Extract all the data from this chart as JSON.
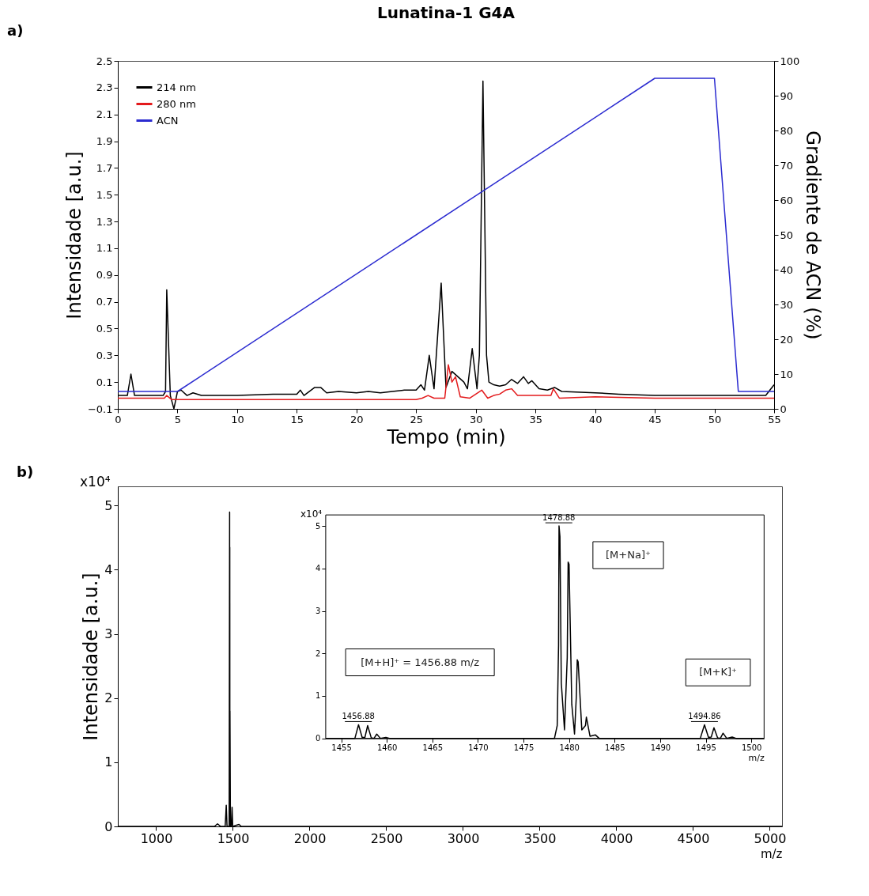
{
  "chart_data": [
    {
      "type": "line",
      "title": "Lunatina-1 G4A",
      "xlabel": "Tempo (min)",
      "ylabel": "Intensidade [a.u.]",
      "y2label": "Gradiente de ACN (%)",
      "annotations": [
        "a)"
      ],
      "xlim": [
        0,
        55
      ],
      "xticks": [
        0,
        5,
        10,
        15,
        20,
        25,
        30,
        35,
        40,
        45,
        50,
        55
      ],
      "ylim": [
        -0.1,
        2.5
      ],
      "yticks": [
        -0.1,
        0.1,
        0.3,
        0.5,
        0.7,
        0.9,
        1.1,
        1.3,
        1.5,
        1.7,
        1.9,
        2.1,
        2.3,
        2.5
      ],
      "y2lim": [
        0,
        100
      ],
      "y2ticks": [
        0,
        10,
        20,
        30,
        40,
        50,
        60,
        70,
        80,
        90,
        100
      ],
      "legend": "top left",
      "grid": false,
      "marker": "none",
      "line_style": "solid",
      "series": [
        {
          "name": "214 nm",
          "color": "#000000",
          "x": [
            0,
            0.8,
            1.1,
            1.4,
            3.8,
            4.0,
            4.1,
            4.4,
            4.7,
            5.0,
            5.3,
            5.8,
            6.3,
            7.0,
            10,
            13,
            15,
            15.3,
            15.6,
            16.5,
            17,
            17.5,
            18.5,
            20,
            21,
            22,
            23,
            24,
            25,
            25.4,
            25.7,
            26.1,
            26.5,
            27.1,
            27.5,
            28.0,
            28.5,
            29.0,
            29.3,
            29.7,
            30.1,
            30.3,
            30.6,
            30.9,
            31.1,
            31.5,
            32.0,
            32.5,
            33.0,
            33.5,
            34.0,
            34.4,
            34.7,
            35.3,
            36,
            36.6,
            37.2,
            40,
            42,
            45,
            50,
            54.3,
            55
          ],
          "values": [
            0.0,
            0.0,
            0.16,
            0.0,
            0.0,
            0.03,
            0.79,
            0.0,
            -0.1,
            0.03,
            0.04,
            0.0,
            0.02,
            0.0,
            0.0,
            0.01,
            0.01,
            0.04,
            0.0,
            0.06,
            0.06,
            0.02,
            0.03,
            0.02,
            0.03,
            0.02,
            0.03,
            0.04,
            0.04,
            0.08,
            0.04,
            0.3,
            0.05,
            0.84,
            0.06,
            0.18,
            0.14,
            0.1,
            0.05,
            0.35,
            0.05,
            0.3,
            2.35,
            0.3,
            0.1,
            0.08,
            0.07,
            0.08,
            0.12,
            0.09,
            0.14,
            0.09,
            0.11,
            0.05,
            0.04,
            0.06,
            0.03,
            0.02,
            0.01,
            0.0,
            0.0,
            0.0,
            0.08
          ]
        },
        {
          "name": "280 nm",
          "color": "#e31a1c",
          "x": [
            0,
            3.9,
            4.1,
            4.5,
            25,
            25.5,
            26,
            26.5,
            27.4,
            27.7,
            28,
            28.3,
            28.7,
            29.5,
            30.5,
            31,
            31.5,
            32,
            32.5,
            33,
            33.5,
            36.3,
            36.5,
            37,
            40,
            45,
            55
          ],
          "values": [
            -0.02,
            -0.02,
            0.0,
            -0.03,
            -0.03,
            -0.02,
            0.0,
            -0.02,
            -0.02,
            0.23,
            0.1,
            0.14,
            -0.01,
            -0.02,
            0.04,
            -0.02,
            0.0,
            0.01,
            0.04,
            0.05,
            0.0,
            0.0,
            0.05,
            -0.02,
            -0.01,
            -0.02,
            -0.02
          ]
        },
        {
          "name": "ACN",
          "color": "#2b2bd0",
          "axis": "y2",
          "x": [
            0,
            5,
            45,
            50,
            52,
            55
          ],
          "values": [
            5,
            5,
            95,
            95,
            5,
            5
          ]
        }
      ]
    },
    {
      "type": "line",
      "xlabel": "m/z",
      "ylabel": "Intensidade [a.u.]",
      "annotations": [
        "b)",
        "x10⁴"
      ],
      "xlim": [
        750,
        5080
      ],
      "xticks": [
        1000,
        1500,
        2000,
        2500,
        3000,
        3500,
        4000,
        4500,
        5000
      ],
      "ylim": [
        0,
        5.3
      ],
      "yticks": [
        0,
        1,
        2,
        3,
        4,
        5
      ],
      "grid": false,
      "marker": "none",
      "line_style": "solid",
      "series": [
        {
          "color": "#000000",
          "x": [
            750,
            1380,
            1400,
            1420,
            1450,
            1456.9,
            1462,
            1476,
            1478.9,
            1479.4,
            1479.9,
            1480.5,
            1481,
            1484,
            1490,
            1494.9,
            1499,
            1540,
            1555,
            1570,
            5080
          ],
          "values": [
            0,
            0,
            0.04,
            0,
            0,
            0.33,
            0,
            0,
            4.9,
            0.3,
            4.35,
            0.2,
            1.8,
            0,
            0,
            0.3,
            0,
            0.03,
            0,
            0,
            0
          ]
        }
      ]
    },
    {
      "type": "line",
      "xlabel": "m/z",
      "annotations": [
        "x10⁴",
        {
          "text": "1478.88",
          "x": 1478.88,
          "y": 5.0
        },
        {
          "text": "1456.88",
          "x": 1456.88,
          "y": 0.32
        },
        {
          "text": "1494.86",
          "x": 1494.86,
          "y": 0.32
        },
        "[M+Na]⁺",
        "[M+H]⁺ = 1456.88 m/z",
        "[M+K]⁺"
      ],
      "xlim": [
        1453.3,
        1501.4
      ],
      "xticks": [
        1455,
        1460,
        1465,
        1470,
        1475,
        1480,
        1485,
        1490,
        1495,
        1500
      ],
      "ylim": [
        0,
        5.26
      ],
      "yticks": [
        0,
        1,
        2,
        3,
        4,
        5
      ],
      "grid": false,
      "marker": "none",
      "line_style": "solid",
      "series": [
        {
          "color": "#000000",
          "x": [
            1453.3,
            1456.5,
            1456.9,
            1457.3,
            1457.6,
            1457.9,
            1458.3,
            1458.6,
            1458.9,
            1459.3,
            1459.9,
            1460.3,
            1478.4,
            1478.7,
            1478.85,
            1478.9,
            1479.0,
            1479.15,
            1479.5,
            1479.8,
            1479.9,
            1480.0,
            1480.3,
            1480.6,
            1480.8,
            1480.9,
            1481.0,
            1481.4,
            1481.8,
            1481.9,
            1482.3,
            1482.9,
            1483.3,
            1494.4,
            1494.86,
            1495.3,
            1495.6,
            1495.9,
            1496.3,
            1496.6,
            1496.9,
            1497.3,
            1497.9,
            1498.3,
            1501.4
          ],
          "values": [
            0,
            0,
            0.32,
            0.02,
            0.02,
            0.3,
            0.01,
            0,
            0.1,
            0,
            0.02,
            0,
            0,
            0.3,
            2.2,
            5.0,
            4.75,
            1.3,
            0.2,
            1.9,
            4.15,
            4.1,
            0.8,
            0.1,
            1.0,
            1.85,
            1.8,
            0.2,
            0.3,
            0.5,
            0.05,
            0.08,
            0,
            0,
            0.32,
            0.02,
            0.03,
            0.25,
            0.01,
            0,
            0.12,
            0,
            0.03,
            0,
            0
          ]
        }
      ]
    }
  ]
}
